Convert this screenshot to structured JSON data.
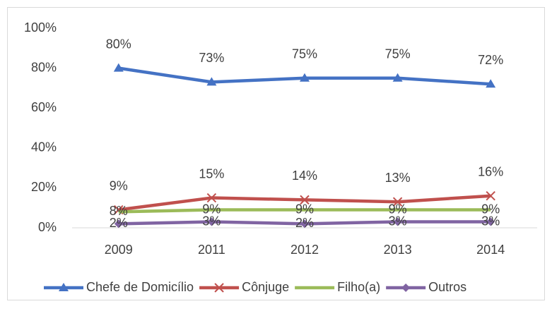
{
  "chart_data": {
    "type": "line",
    "categories": [
      "2009",
      "2011",
      "2012",
      "2013",
      "2014"
    ],
    "series": [
      {
        "name": "Chefe de Domicílio",
        "color": "#4472c4",
        "marker": "triangle",
        "values": [
          80,
          73,
          75,
          75,
          72
        ],
        "value_labels": [
          "80%",
          "73%",
          "75%",
          "75%",
          "72%"
        ]
      },
      {
        "name": "Cônjuge",
        "color": "#c0504d",
        "marker": "x",
        "values": [
          9,
          15,
          14,
          13,
          16
        ],
        "value_labels": [
          "9%",
          "15%",
          "14%",
          "13%",
          "16%"
        ]
      },
      {
        "name": "Filho(a)",
        "color": "#9bbb59",
        "marker": "none",
        "values": [
          8,
          9,
          9,
          9,
          9
        ],
        "value_labels": [
          "8%",
          "9%",
          "9%",
          "9%",
          "9%"
        ]
      },
      {
        "name": "Outros",
        "color": "#8064a2",
        "marker": "diamond",
        "values": [
          2,
          3,
          2,
          3,
          3
        ],
        "value_labels": [
          "2%",
          "3%",
          "2%",
          "3%",
          "3%"
        ]
      }
    ],
    "ylim": [
      0,
      100
    ],
    "yticks": [
      {
        "value": 0,
        "label": "0%"
      },
      {
        "value": 20,
        "label": "20%"
      },
      {
        "value": 40,
        "label": "40%"
      },
      {
        "value": 60,
        "label": "60%"
      },
      {
        "value": 80,
        "label": "80%"
      },
      {
        "value": 100,
        "label": "100%"
      }
    ],
    "grid": false,
    "legend": "bottom"
  }
}
